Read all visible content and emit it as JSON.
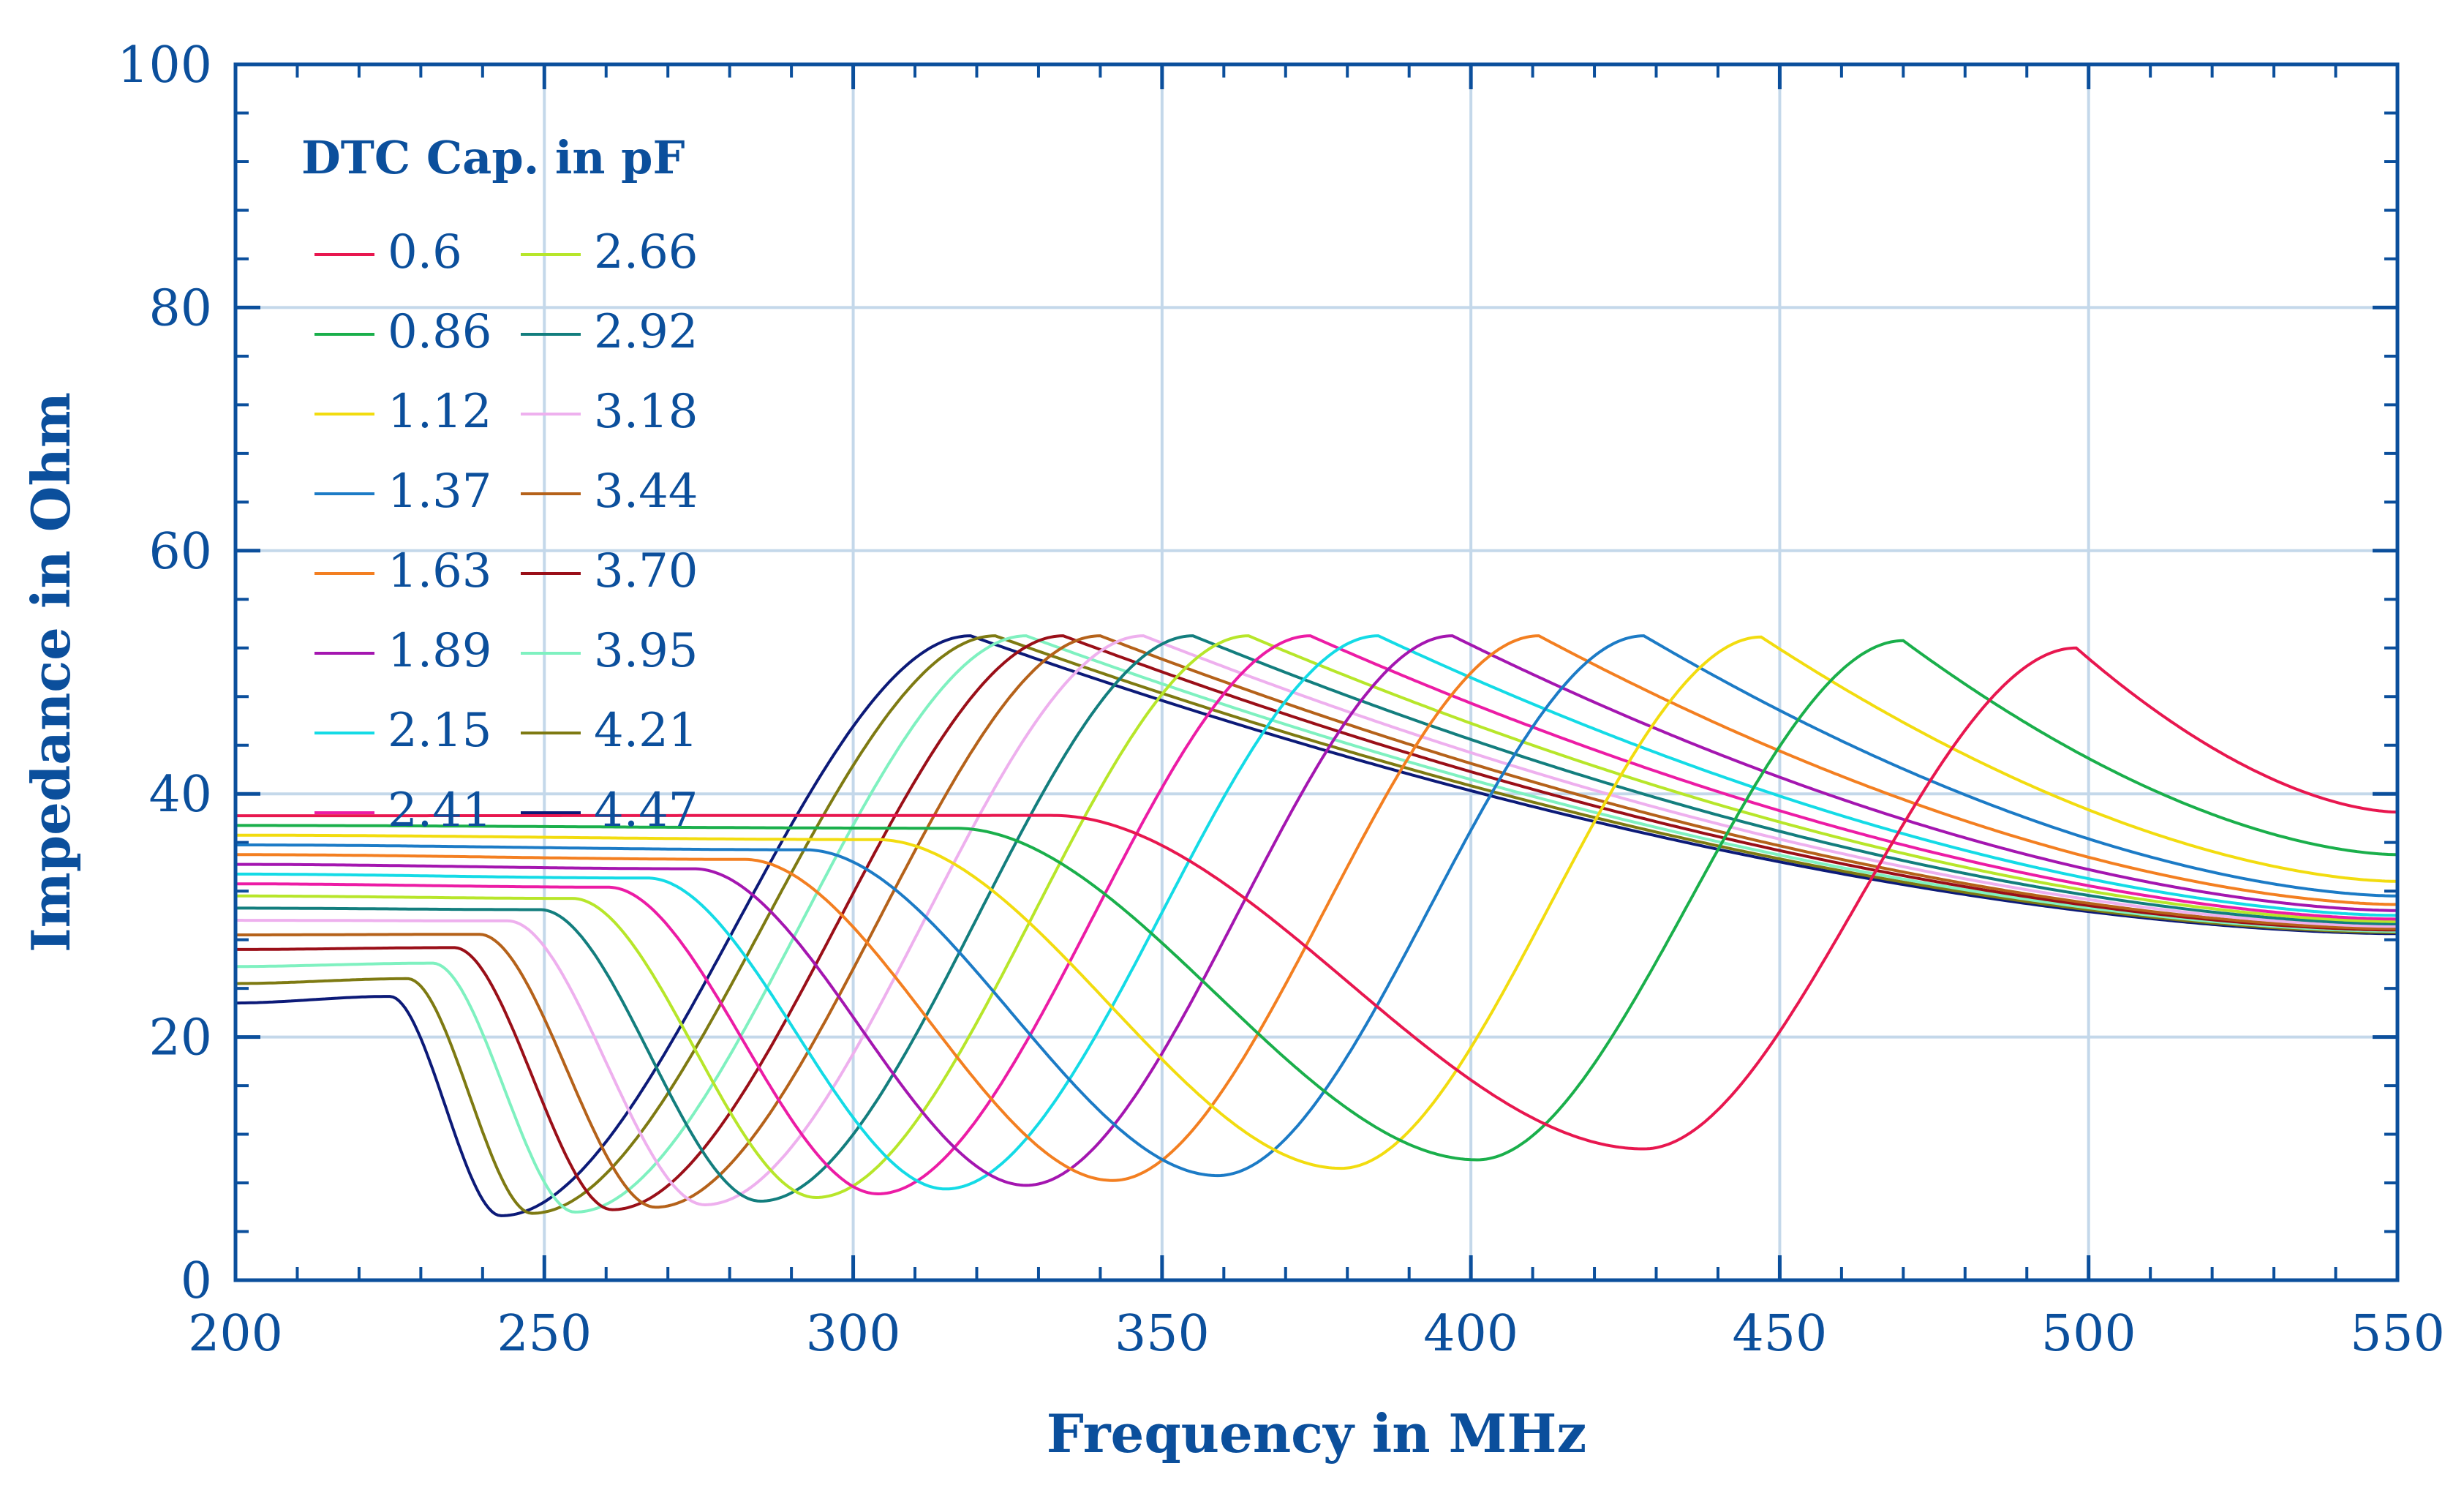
{
  "chart_data": {
    "type": "line",
    "title": "",
    "xlabel": "Frequency in MHz",
    "ylabel": "Impedance in Ohm",
    "xlim": [
      200,
      550
    ],
    "ylim": [
      0,
      100
    ],
    "xticks": [
      200,
      250,
      300,
      350,
      400,
      450,
      500,
      550
    ],
    "yticks": [
      0,
      20,
      40,
      60,
      80,
      100
    ],
    "xtick_labels": [
      "200",
      "250",
      "300",
      "350",
      "400",
      "450",
      "500",
      "550"
    ],
    "ytick_labels": [
      "0",
      "20",
      "40",
      "60",
      "80",
      "100"
    ],
    "grid": true,
    "legend": {
      "title": "DTC Cap. in pF",
      "position": "top-left",
      "columns": 2
    },
    "series": [
      {
        "name": "0.6",
        "color": "#e8174f",
        "z_start": 38.2,
        "min_f": 428,
        "min_z": 10.8,
        "peak_f": 498,
        "peak_z": 52.0,
        "z_end": 38.5
      },
      {
        "name": "0.86",
        "color": "#1aaf4b",
        "z_start": 37.4,
        "min_f": 401,
        "min_z": 9.9,
        "peak_f": 470,
        "peak_z": 52.6,
        "z_end": 35.0
      },
      {
        "name": "1.12",
        "color": "#f2dc0f",
        "z_start": 36.6,
        "min_f": 379,
        "min_z": 9.2,
        "peak_f": 447,
        "peak_z": 52.9,
        "z_end": 32.8
      },
      {
        "name": "1.37",
        "color": "#1c7bc6",
        "z_start": 35.8,
        "min_f": 359,
        "min_z": 8.6,
        "peak_f": 428,
        "peak_z": 53.0,
        "z_end": 31.6
      },
      {
        "name": "1.63",
        "color": "#f37f21",
        "z_start": 35.0,
        "min_f": 342,
        "min_z": 8.2,
        "peak_f": 411,
        "peak_z": 53.0,
        "z_end": 30.9
      },
      {
        "name": "1.89",
        "color": "#a416b0",
        "z_start": 34.2,
        "min_f": 328,
        "min_z": 7.8,
        "peak_f": 397,
        "peak_z": 53.0,
        "z_end": 30.4
      },
      {
        "name": "2.15",
        "color": "#14dbe6",
        "z_start": 33.4,
        "min_f": 315,
        "min_z": 7.5,
        "peak_f": 385,
        "peak_z": 53.0,
        "z_end": 30.0
      },
      {
        "name": "2.41",
        "color": "#ec1ca5",
        "z_start": 32.6,
        "min_f": 304,
        "min_z": 7.1,
        "peak_f": 374,
        "peak_z": 53.0,
        "z_end": 29.7
      },
      {
        "name": "2.66",
        "color": "#b7e62a",
        "z_start": 31.6,
        "min_f": 294,
        "min_z": 6.8,
        "peak_f": 364,
        "peak_z": 53.0,
        "z_end": 29.5
      },
      {
        "name": "2.92",
        "color": "#137e7e",
        "z_start": 30.6,
        "min_f": 285,
        "min_z": 6.5,
        "peak_f": 355,
        "peak_z": 53.0,
        "z_end": 29.3
      },
      {
        "name": "3.18",
        "color": "#eeb0ee",
        "z_start": 29.6,
        "min_f": 276,
        "min_z": 6.2,
        "peak_f": 347,
        "peak_z": 53.0,
        "z_end": 29.1
      },
      {
        "name": "3.44",
        "color": "#b5621a",
        "z_start": 28.4,
        "min_f": 268,
        "min_z": 6.0,
        "peak_f": 340,
        "peak_z": 53.0,
        "z_end": 28.9
      },
      {
        "name": "3.70",
        "color": "#9a0f18",
        "z_start": 27.2,
        "min_f": 261,
        "min_z": 5.8,
        "peak_f": 334,
        "peak_z": 53.0,
        "z_end": 28.8
      },
      {
        "name": "3.95",
        "color": "#7ff1c0",
        "z_start": 25.8,
        "min_f": 255,
        "min_z": 5.6,
        "peak_f": 328,
        "peak_z": 53.0,
        "z_end": 28.7
      },
      {
        "name": "4.21",
        "color": "#7e7a12",
        "z_start": 24.4,
        "min_f": 248,
        "min_z": 5.5,
        "peak_f": 323,
        "peak_z": 53.0,
        "z_end": 28.6
      },
      {
        "name": "4.47",
        "color": "#0c1a78",
        "z_start": 22.8,
        "min_f": 243,
        "min_z": 5.3,
        "peak_f": 319,
        "peak_z": 53.0,
        "z_end": 28.5
      }
    ]
  }
}
